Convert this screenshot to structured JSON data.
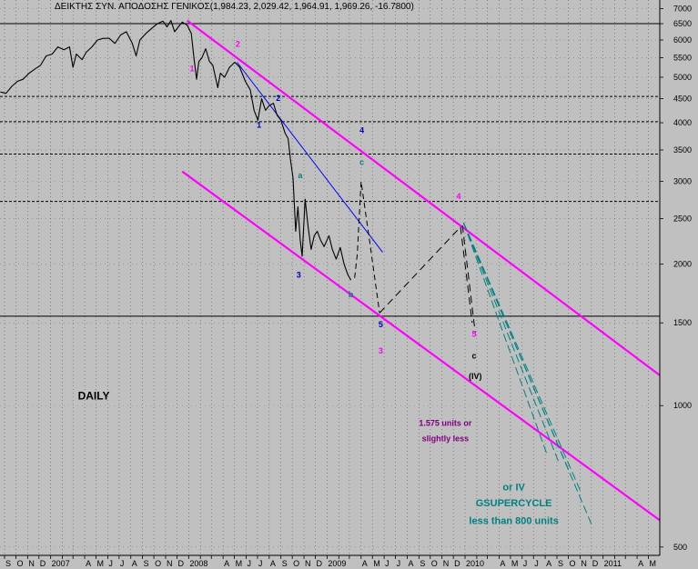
{
  "chart_data": {
    "type": "line",
    "title": "ΔΕΙΚΤΗΣ ΣΥΝ. ΑΠΟΔΟΣΗΣ ΓΕΝΙΚΟΣ(1,984.23, 2,029.42, 1,964.91, 1,969.26, -16.7800)",
    "y_scale": "log",
    "ylim": [
      480,
      7300
    ],
    "xlim": [
      "2006-08-20",
      "2011-05-31"
    ],
    "grid": true,
    "y_ticks": [
      {
        "v": 7000,
        "label": "7000"
      },
      {
        "v": 6500,
        "label": "6500"
      },
      {
        "v": 6000,
        "label": "6000"
      },
      {
        "v": 5500,
        "label": "5500"
      },
      {
        "v": 5000,
        "label": "5000"
      },
      {
        "v": 4500,
        "label": "4500"
      },
      {
        "v": 4000,
        "label": "4000"
      },
      {
        "v": 3500,
        "label": "3500"
      },
      {
        "v": 3000,
        "label": "3000"
      },
      {
        "v": 2500,
        "label": "2500"
      },
      {
        "v": 2000,
        "label": "2000"
      },
      {
        "v": 1500,
        "label": "1500"
      },
      {
        "v": 1000,
        "label": "1000"
      },
      {
        "v": 500,
        "label": "500"
      }
    ],
    "x_ticks": [
      {
        "d": "2006-09-01",
        "label": "S"
      },
      {
        "d": "2006-10-01",
        "label": "O"
      },
      {
        "d": "2006-11-01",
        "label": "N"
      },
      {
        "d": "2006-12-01",
        "label": "D"
      },
      {
        "d": "2007-01-01",
        "label": "2007"
      },
      {
        "d": "2007-02-01",
        "label": ""
      },
      {
        "d": "2007-03-01",
        "label": ""
      },
      {
        "d": "2007-04-01",
        "label": "A"
      },
      {
        "d": "2007-05-01",
        "label": "M"
      },
      {
        "d": "2007-06-01",
        "label": "J"
      },
      {
        "d": "2007-07-01",
        "label": "J"
      },
      {
        "d": "2007-08-01",
        "label": "A"
      },
      {
        "d": "2007-09-01",
        "label": "S"
      },
      {
        "d": "2007-10-01",
        "label": "O"
      },
      {
        "d": "2007-11-01",
        "label": "N"
      },
      {
        "d": "2007-12-01",
        "label": "D"
      },
      {
        "d": "2008-01-01",
        "label": "2008"
      },
      {
        "d": "2008-02-01",
        "label": ""
      },
      {
        "d": "2008-03-01",
        "label": ""
      },
      {
        "d": "2008-04-01",
        "label": "A"
      },
      {
        "d": "2008-05-01",
        "label": "M"
      },
      {
        "d": "2008-06-01",
        "label": "J"
      },
      {
        "d": "2008-07-01",
        "label": "J"
      },
      {
        "d": "2008-08-01",
        "label": "A"
      },
      {
        "d": "2008-09-01",
        "label": "S"
      },
      {
        "d": "2008-10-01",
        "label": "O"
      },
      {
        "d": "2008-11-01",
        "label": "N"
      },
      {
        "d": "2008-12-01",
        "label": "D"
      },
      {
        "d": "2009-01-01",
        "label": "2009"
      },
      {
        "d": "2009-02-01",
        "label": ""
      },
      {
        "d": "2009-03-01",
        "label": ""
      },
      {
        "d": "2009-04-01",
        "label": "A"
      },
      {
        "d": "2009-05-01",
        "label": "M"
      },
      {
        "d": "2009-06-01",
        "label": "J"
      },
      {
        "d": "2009-07-01",
        "label": "J"
      },
      {
        "d": "2009-08-01",
        "label": "A"
      },
      {
        "d": "2009-09-01",
        "label": "S"
      },
      {
        "d": "2009-10-01",
        "label": "O"
      },
      {
        "d": "2009-11-01",
        "label": "N"
      },
      {
        "d": "2009-12-01",
        "label": "D"
      },
      {
        "d": "2010-01-01",
        "label": "2010"
      },
      {
        "d": "2010-02-01",
        "label": ""
      },
      {
        "d": "2010-03-01",
        "label": ""
      },
      {
        "d": "2010-04-01",
        "label": "A"
      },
      {
        "d": "2010-05-01",
        "label": "M"
      },
      {
        "d": "2010-06-01",
        "label": "J"
      },
      {
        "d": "2010-07-01",
        "label": "J"
      },
      {
        "d": "2010-08-01",
        "label": "A"
      },
      {
        "d": "2010-09-01",
        "label": "S"
      },
      {
        "d": "2010-10-01",
        "label": "O"
      },
      {
        "d": "2010-11-01",
        "label": "N"
      },
      {
        "d": "2010-12-01",
        "label": "D"
      },
      {
        "d": "2011-01-01",
        "label": "2011"
      },
      {
        "d": "2011-02-01",
        "label": ""
      },
      {
        "d": "2011-03-01",
        "label": ""
      },
      {
        "d": "2011-04-01",
        "label": "A"
      },
      {
        "d": "2011-05-01",
        "label": "M"
      }
    ],
    "h_lines": [
      6500,
      4550,
      4020,
      3430,
      2720,
      1550
    ],
    "series": [
      {
        "color": "#000000",
        "points": [
          [
            "2006-08-21",
            4650
          ],
          [
            "2006-09-05",
            4620
          ],
          [
            "2006-09-20",
            4780
          ],
          [
            "2006-10-05",
            4900
          ],
          [
            "2006-10-20",
            4950
          ],
          [
            "2006-11-05",
            5100
          ],
          [
            "2006-11-20",
            5200
          ],
          [
            "2006-12-05",
            5300
          ],
          [
            "2006-12-20",
            5550
          ],
          [
            "2007-01-05",
            5600
          ],
          [
            "2007-01-20",
            5800
          ],
          [
            "2007-02-05",
            5720
          ],
          [
            "2007-02-20",
            5800
          ],
          [
            "2007-03-01",
            5250
          ],
          [
            "2007-03-10",
            5600
          ],
          [
            "2007-03-25",
            5450
          ],
          [
            "2007-04-05",
            5650
          ],
          [
            "2007-04-20",
            5800
          ],
          [
            "2007-05-05",
            6000
          ],
          [
            "2007-05-20",
            6050
          ],
          [
            "2007-06-05",
            6050
          ],
          [
            "2007-06-20",
            5900
          ],
          [
            "2007-07-05",
            6150
          ],
          [
            "2007-07-20",
            6250
          ],
          [
            "2007-08-05",
            5900
          ],
          [
            "2007-08-15",
            5550
          ],
          [
            "2007-08-25",
            6000
          ],
          [
            "2007-09-10",
            6200
          ],
          [
            "2007-09-25",
            6350
          ],
          [
            "2007-10-10",
            6500
          ],
          [
            "2007-10-25",
            6580
          ],
          [
            "2007-11-05",
            6400
          ],
          [
            "2007-11-15",
            6600
          ],
          [
            "2007-11-25",
            6250
          ],
          [
            "2007-12-05",
            6400
          ],
          [
            "2007-12-15",
            6550
          ],
          [
            "2007-12-28",
            6450
          ],
          [
            "2008-01-08",
            6200
          ],
          [
            "2008-01-15",
            5500
          ],
          [
            "2008-01-22",
            4950
          ],
          [
            "2008-01-28",
            5400
          ],
          [
            "2008-02-05",
            5500
          ],
          [
            "2008-02-15",
            5750
          ],
          [
            "2008-02-25",
            5400
          ],
          [
            "2008-03-05",
            5300
          ],
          [
            "2008-03-12",
            5000
          ],
          [
            "2008-03-18",
            4750
          ],
          [
            "2008-03-25",
            5100
          ],
          [
            "2008-04-05",
            5000
          ],
          [
            "2008-04-18",
            5250
          ],
          [
            "2008-05-02",
            5380
          ],
          [
            "2008-05-15",
            5250
          ],
          [
            "2008-05-30",
            4900
          ],
          [
            "2008-06-12",
            4700
          ],
          [
            "2008-06-22",
            4250
          ],
          [
            "2008-07-02",
            4050
          ],
          [
            "2008-07-12",
            4500
          ],
          [
            "2008-07-22",
            4250
          ],
          [
            "2008-08-01",
            4350
          ],
          [
            "2008-08-12",
            4400
          ],
          [
            "2008-08-22",
            4150
          ],
          [
            "2008-09-01",
            4050
          ],
          [
            "2008-09-12",
            3800
          ],
          [
            "2008-09-20",
            3700
          ],
          [
            "2008-09-26",
            3350
          ],
          [
            "2008-10-03",
            3050
          ],
          [
            "2008-10-10",
            2350
          ],
          [
            "2008-10-16",
            2650
          ],
          [
            "2008-10-22",
            2250
          ],
          [
            "2008-10-27",
            2080
          ],
          [
            "2008-11-04",
            2750
          ],
          [
            "2008-11-12",
            2400
          ],
          [
            "2008-11-20",
            2150
          ],
          [
            "2008-11-28",
            2300
          ],
          [
            "2008-12-06",
            2350
          ],
          [
            "2008-12-15",
            2250
          ],
          [
            "2008-12-24",
            2180
          ],
          [
            "2009-01-06",
            2300
          ],
          [
            "2009-01-15",
            2150
          ],
          [
            "2009-01-25",
            2050
          ],
          [
            "2009-02-05",
            2170
          ],
          [
            "2009-02-15",
            2000
          ],
          [
            "2009-02-25",
            1900
          ],
          [
            "2009-03-05",
            1850
          ]
        ]
      }
    ],
    "overlays": [
      {
        "color": "#ff00ff",
        "width": 2.2,
        "dash": "",
        "points": [
          [
            "2007-12-28",
            6600
          ],
          [
            "2011-05-31",
            1160
          ]
        ]
      },
      {
        "color": "#ff00ff",
        "width": 2.2,
        "dash": "",
        "points": [
          [
            "2007-12-15",
            3150
          ],
          [
            "2011-05-31",
            570
          ]
        ]
      },
      {
        "color": "#0000ff",
        "width": 1,
        "dash": "",
        "points": [
          [
            "2008-05-08",
            5380
          ],
          [
            "2009-05-28",
            2120
          ]
        ]
      },
      {
        "color": "#000000",
        "width": 1,
        "dash": "6,4",
        "points": [
          [
            "2009-03-15",
            1870
          ],
          [
            "2009-03-22",
            2100
          ],
          [
            "2009-04-01",
            3000
          ],
          [
            "2009-04-25",
            2200
          ],
          [
            "2009-05-20",
            1575
          ]
        ]
      },
      {
        "color": "#000000",
        "width": 1,
        "dash": "8,5",
        "points": [
          [
            "2009-05-20",
            1575
          ],
          [
            "2009-12-20",
            2400
          ]
        ]
      },
      {
        "color": "#000000",
        "width": 1,
        "dash": "8,5",
        "points": [
          [
            "2009-12-20",
            2400
          ],
          [
            "2010-01-20",
            1500
          ]
        ]
      },
      {
        "color": "#000000",
        "width": 1,
        "dash": "8,5",
        "points": [
          [
            "2009-12-25",
            2420
          ],
          [
            "2010-01-28",
            1430
          ]
        ]
      },
      {
        "color": "#008080",
        "width": 1,
        "dash": "9,4",
        "points": [
          [
            "2009-12-28",
            2450
          ],
          [
            "2010-08-05",
            790
          ]
        ]
      },
      {
        "color": "#008080",
        "width": 1,
        "dash": "9,4",
        "points": [
          [
            "2009-12-28",
            2450
          ],
          [
            "2010-09-05",
            760
          ]
        ]
      },
      {
        "color": "#008080",
        "width": 1,
        "dash": "9,4",
        "points": [
          [
            "2009-12-28",
            2450
          ],
          [
            "2010-10-05",
            720
          ]
        ]
      },
      {
        "color": "#008080",
        "width": 1,
        "dash": "9,4",
        "points": [
          [
            "2009-12-28",
            2450
          ],
          [
            "2010-11-05",
            650
          ]
        ]
      },
      {
        "color": "#008080",
        "width": 1,
        "dash": "9,4",
        "points": [
          [
            "2009-12-28",
            2450
          ],
          [
            "2010-12-05",
            550
          ]
        ]
      }
    ],
    "annotations": [
      {
        "text": "1",
        "d": "2008-01-10",
        "v": 5150,
        "color": "#ff00ff",
        "size": 9
      },
      {
        "text": "2",
        "d": "2008-05-10",
        "v": 5800,
        "color": "#ff00ff",
        "size": 9
      },
      {
        "text": "1",
        "d": "2008-07-05",
        "v": 3900,
        "color": "#0000c0",
        "size": 9
      },
      {
        "text": "2",
        "d": "2008-08-25",
        "v": 4450,
        "color": "#0000c0",
        "size": 9
      },
      {
        "text": "a",
        "d": "2008-10-22",
        "v": 3050,
        "color": "#008080",
        "size": 9
      },
      {
        "text": "3",
        "d": "2008-10-18",
        "v": 1870,
        "color": "#0000c0",
        "size": 9
      },
      {
        "text": "b",
        "d": "2009-03-05",
        "v": 1700,
        "color": "#008080",
        "size": 9
      },
      {
        "text": "4",
        "d": "2009-04-03",
        "v": 3800,
        "color": "#0000c0",
        "size": 9
      },
      {
        "text": "c",
        "d": "2009-04-03",
        "v": 3250,
        "color": "#008080",
        "size": 9
      },
      {
        "text": "5",
        "d": "2009-05-23",
        "v": 1470,
        "color": "#0000c0",
        "size": 9
      },
      {
        "text": "3",
        "d": "2009-05-23",
        "v": 1290,
        "color": "#ff00ff",
        "size": 9
      },
      {
        "text": "4",
        "d": "2009-12-15",
        "v": 2750,
        "color": "#ff00ff",
        "size": 9
      },
      {
        "text": "5",
        "d": "2010-01-25",
        "v": 1400,
        "color": "#ff00ff",
        "size": 9
      },
      {
        "text": "c",
        "d": "2010-01-25",
        "v": 1260,
        "color": "#000000",
        "size": 9
      },
      {
        "text": "(IV)",
        "d": "2010-01-28",
        "v": 1140,
        "color": "#000000",
        "size": 9
      },
      {
        "text": "DAILY",
        "d": "2007-04-25",
        "v": 1030,
        "color": "#000000",
        "size": 12
      },
      {
        "text": "1.575 units or",
        "d": "2009-11-10",
        "v": 905,
        "color": "#800080",
        "size": 9
      },
      {
        "text": "slightly less",
        "d": "2009-11-10",
        "v": 840,
        "color": "#800080",
        "size": 9
      },
      {
        "text": "or IV",
        "d": "2010-05-10",
        "v": 660,
        "color": "#008080",
        "size": 11
      },
      {
        "text": "GSUPERCYCLE",
        "d": "2010-05-10",
        "v": 610,
        "color": "#008080",
        "size": 11
      },
      {
        "text": "less than 800 units",
        "d": "2010-05-10",
        "v": 560,
        "color": "#008080",
        "size": 11
      }
    ]
  }
}
